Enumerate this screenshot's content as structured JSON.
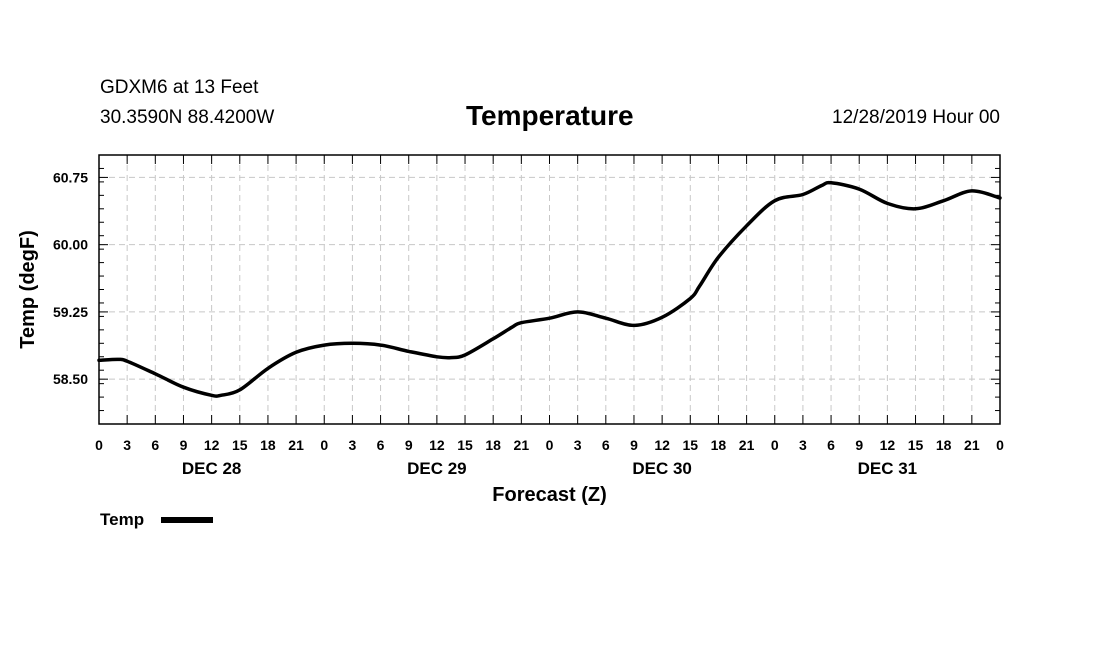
{
  "header": {
    "station": "GDXM6 at 13 Feet",
    "coords": "30.3590N 88.4200W",
    "title": "Temperature",
    "runtime": "12/28/2019 Hour 00"
  },
  "chart_data": {
    "type": "line",
    "title": "Temperature",
    "xlabel": "Forecast (Z)",
    "ylabel": "Temp (degF)",
    "ylim": [
      58.0,
      61.0
    ],
    "xlim": [
      0,
      96
    ],
    "yticks": [
      58.5,
      59.25,
      60.0,
      60.75
    ],
    "ytick_labels": [
      "58.50",
      "59.25",
      "60.00",
      "60.75"
    ],
    "xtick_labels": [
      "0",
      "3",
      "6",
      "9",
      "12",
      "15",
      "18",
      "21",
      "0",
      "3",
      "6",
      "9",
      "12",
      "15",
      "18",
      "21",
      "0",
      "3",
      "6",
      "9",
      "12",
      "15",
      "18",
      "21",
      "0",
      "3",
      "6",
      "9",
      "12",
      "15",
      "18",
      "21",
      "0"
    ],
    "date_labels": [
      {
        "hour": 12,
        "label": "DEC 28"
      },
      {
        "hour": 36,
        "label": "DEC 29"
      },
      {
        "hour": 60,
        "label": "DEC 30"
      },
      {
        "hour": 84,
        "label": "DEC 31"
      }
    ],
    "grid": true,
    "legend": {
      "label": "Temp",
      "placement": "below-left"
    },
    "series": [
      {
        "name": "Temp",
        "x": [
          0,
          2,
          3,
          6,
          9,
          12,
          13,
          15,
          18,
          21,
          24,
          27,
          30,
          33,
          36,
          37.5,
          39,
          42,
          44,
          45,
          48,
          51,
          54,
          57,
          60,
          63,
          64,
          66,
          69,
          72,
          75,
          77,
          78,
          81,
          84,
          87,
          90,
          93,
          96
        ],
        "values": [
          58.71,
          58.72,
          58.7,
          58.56,
          58.41,
          58.32,
          58.32,
          58.38,
          58.62,
          58.8,
          58.88,
          58.9,
          58.88,
          58.81,
          58.75,
          58.74,
          58.77,
          58.95,
          59.08,
          59.13,
          59.18,
          59.25,
          59.18,
          59.1,
          59.19,
          59.4,
          59.54,
          59.86,
          60.21,
          60.49,
          60.56,
          60.66,
          60.69,
          60.62,
          60.46,
          60.4,
          60.49,
          60.6,
          60.52
        ]
      }
    ]
  }
}
